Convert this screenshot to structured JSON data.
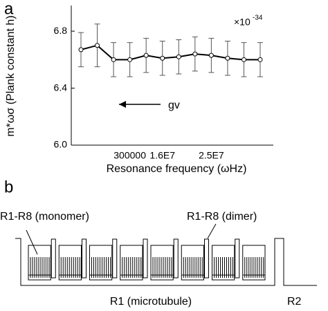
{
  "chart_data": {
    "type": "line",
    "panel_label": "a",
    "y_label": "m*ωσ (Plank constant h)",
    "x_label": "Resonance frequency (ωHz)",
    "scale_base": "×10",
    "scale_exponent": "-34",
    "annotation": "gv",
    "categories": [
      null,
      null,
      null,
      "300000",
      null,
      "1.6E7",
      null,
      null,
      "2.5E7",
      null,
      null,
      null
    ],
    "series": [
      {
        "color": "#000000",
        "values": [
          6.67,
          6.7,
          6.6,
          6.6,
          6.63,
          6.61,
          6.62,
          6.64,
          6.63,
          6.61,
          6.6,
          6.6
        ],
        "errors": [
          0.12,
          0.15,
          0.12,
          0.12,
          0.12,
          0.12,
          0.12,
          0.12,
          0.12,
          0.12,
          0.12,
          0.12
        ]
      }
    ],
    "ylim": [
      6.0,
      6.98
    ],
    "yticks": [
      {
        "value": 6.0,
        "label": "6.0"
      },
      6.4,
      6.8
    ]
  },
  "diagram": {
    "panel_label": "b",
    "monomer_label": "R1-R8 (monomer)",
    "dimer_label": "R1-R8 (dimer)",
    "microtubule_label": "R1 (microtubule)",
    "r2_label": "R2"
  }
}
